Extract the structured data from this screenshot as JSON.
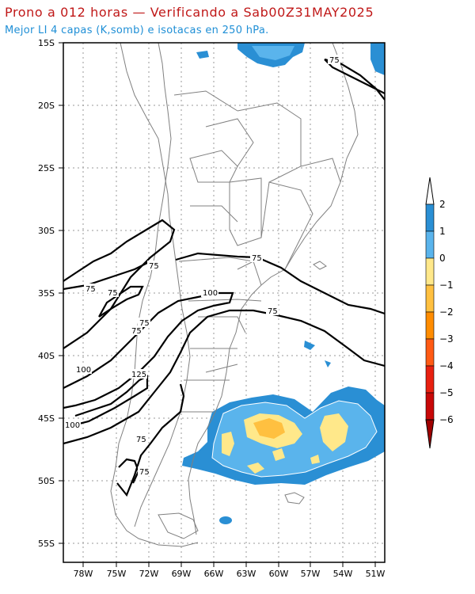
{
  "header": {
    "title": "Prono a 012 horas — Verificando a Sab00Z31MAY2025",
    "subtitle": "Mejor LI 4 capas (K,somb) e isotacas en 250 hPa."
  },
  "axes": {
    "lat_labels": [
      "15S",
      "20S",
      "25S",
      "30S",
      "35S",
      "40S",
      "45S",
      "50S",
      "55S"
    ],
    "lon_labels": [
      "78W",
      "75W",
      "72W",
      "69W",
      "66W",
      "63W",
      "60W",
      "57W",
      "54W",
      "51W"
    ],
    "lat_range": [
      -56,
      -15
    ],
    "lon_range": [
      -80,
      -50
    ]
  },
  "colorbar": {
    "labels": [
      "2",
      "1",
      "0",
      "−1",
      "−2",
      "−3",
      "−4",
      "−5",
      "−6"
    ],
    "colors": [
      "#2a8fd4",
      "#5ab4ec",
      "#ffe88a",
      "#ffc040",
      "#ff8c00",
      "#ff5a14",
      "#e82010",
      "#c80808",
      "#a00000"
    ]
  },
  "isotach_labels": {
    "l1": "75",
    "l2": "75",
    "l3": "75",
    "l4": "75",
    "l5": "75",
    "l6": "75",
    "l7": "75",
    "l8": "75",
    "l9": "75",
    "l10": "75",
    "l11": "100",
    "l12": "100",
    "l13": "100",
    "l14": "125"
  },
  "colors": {
    "li_dark": "#2a8fd4",
    "li_light": "#5ab4ec",
    "li_yellow": "#ffe88a",
    "li_orange": "#ffc040",
    "coast": "#888888",
    "contour": "#000000"
  }
}
